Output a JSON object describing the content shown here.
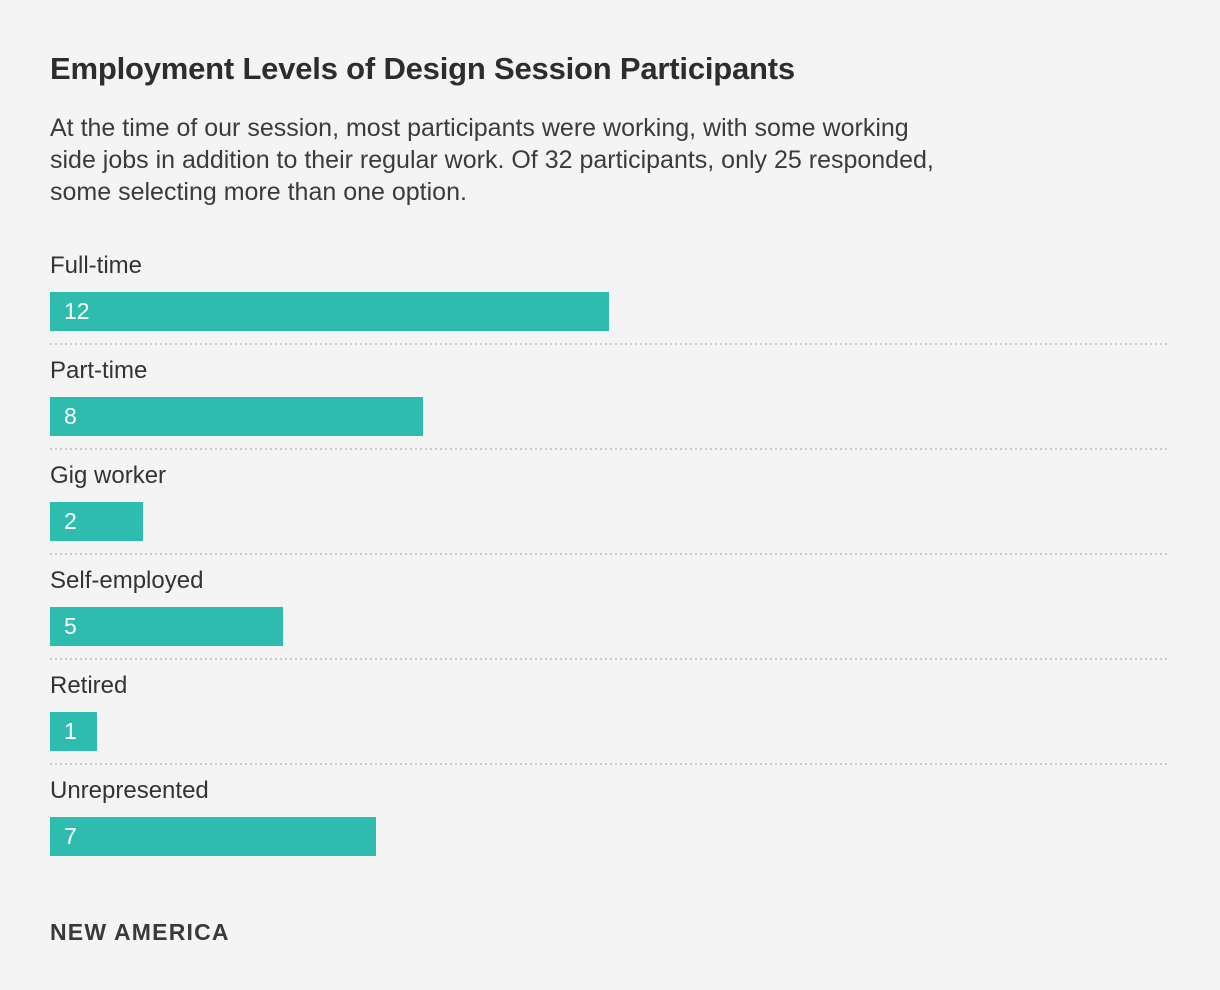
{
  "page": {
    "background_color": "#f4f4f4"
  },
  "header": {
    "title": "Employment Levels of Design Session Participants",
    "subtitle": "At the time of our session, most participants were working, with some working\nside jobs in addition to their regular work. Of 32 participants, only 25 responded,\nsome selecting more than one option."
  },
  "chart_data": {
    "type": "bar",
    "orientation": "horizontal",
    "title": "Employment Levels of Design Session Participants",
    "categories": [
      "Full-time",
      "Part-time",
      "Gig worker",
      "Self-employed",
      "Retired",
      "Unrepresented"
    ],
    "values": [
      12,
      8,
      2,
      5,
      1,
      7
    ],
    "xlabel": "",
    "ylabel": "",
    "xlim": [
      0,
      24
    ],
    "grid": false,
    "legend": false,
    "bar_color": "#2dbcad",
    "value_label_color": "#ffffff",
    "separator_style": "dotted",
    "value_labels_inside_bars": true
  },
  "footer": {
    "brand": "NEW AMERICA"
  }
}
